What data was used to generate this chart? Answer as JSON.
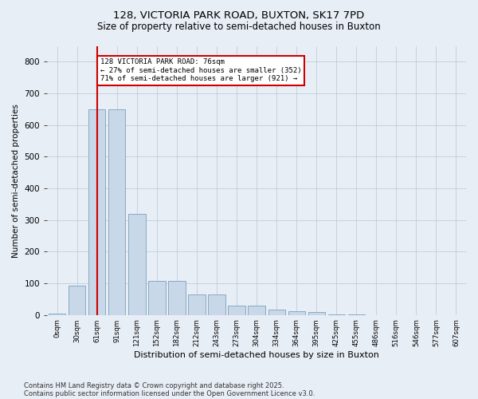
{
  "title1": "128, VICTORIA PARK ROAD, BUXTON, SK17 7PD",
  "title2": "Size of property relative to semi-detached houses in Buxton",
  "xlabel": "Distribution of semi-detached houses by size in Buxton",
  "ylabel": "Number of semi-detached properties",
  "categories": [
    "0sqm",
    "30sqm",
    "61sqm",
    "91sqm",
    "121sqm",
    "152sqm",
    "182sqm",
    "212sqm",
    "243sqm",
    "273sqm",
    "304sqm",
    "334sqm",
    "364sqm",
    "395sqm",
    "425sqm",
    "455sqm",
    "486sqm",
    "516sqm",
    "546sqm",
    "577sqm",
    "607sqm"
  ],
  "values": [
    5,
    93,
    650,
    650,
    320,
    107,
    107,
    65,
    65,
    30,
    30,
    18,
    12,
    10,
    2,
    1,
    0,
    0,
    0,
    0,
    0
  ],
  "bar_color": "#c8d8e8",
  "bar_edge_color": "#7aa0be",
  "vline_color": "#cc0000",
  "annotation_box_color": "#ffffff",
  "annotation_box_edge_color": "#cc0000",
  "bg_color": "#e8eef5",
  "plot_bg_color": "#e8eef5",
  "ylim": [
    0,
    850
  ],
  "yticks": [
    0,
    100,
    200,
    300,
    400,
    500,
    600,
    700,
    800
  ],
  "pct_smaller": 27,
  "pct_larger": 71,
  "n_smaller": 352,
  "n_larger": 921,
  "property_sqm": 76,
  "footnote1": "Contains HM Land Registry data © Crown copyright and database right 2025.",
  "footnote2": "Contains public sector information licensed under the Open Government Licence v3.0."
}
